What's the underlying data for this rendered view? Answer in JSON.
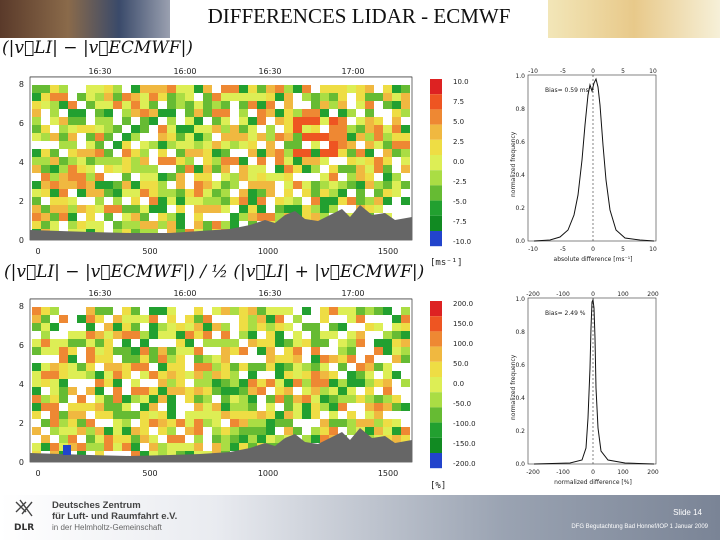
{
  "title": "DIFFERENCES LIDAR - ECMWF",
  "formula_abs": "(|v⃗LI| − |v⃗ECMWF|)",
  "formula_rel": "(|v⃗LI| − |v⃗ECMWF|) / ½ (|v⃗LI| + |v⃗ECMWF|)",
  "unit_abs": "[ms⁻¹]",
  "unit_rel": "[%]",
  "top_time_ticks": [
    "16:30",
    "16:00",
    "16:30",
    "17:00"
  ],
  "x_ticks": [
    "0",
    "500",
    "1000",
    "1500"
  ],
  "y_ticks": [
    "0",
    "2",
    "4",
    "6",
    "8"
  ],
  "colorbar_abs": [
    "10.0",
    "7.5",
    "5.0",
    "2.5",
    "0.0",
    "-2.5",
    "-5.0",
    "-7.5",
    "-10.0"
  ],
  "colorbar_rel": [
    "200.0",
    "150.0",
    "100.0",
    "50.0",
    "0.0",
    "-50.0",
    "-100.0",
    "-150.0",
    "-200.0"
  ],
  "colors": {
    "scale": [
      "#dd2222",
      "#ee5522",
      "#ee8833",
      "#f0b840",
      "#eedd44",
      "#ddee55",
      "#aadd44",
      "#66bb33",
      "#22a030",
      "#118a22",
      "#2244cc"
    ],
    "terrain": "#666666"
  },
  "hist_abs": {
    "x_ticks": [
      "-10",
      "-5",
      "0",
      "5",
      "10"
    ],
    "y_ticks": [
      "0.0",
      "0.2",
      "0.4",
      "0.6",
      "0.8",
      "1.0"
    ],
    "bias": "Bias= 0.59 ms⁻¹",
    "ylabel": "normalized frequency",
    "xlabel": "absolute difference [ms⁻¹]"
  },
  "hist_rel": {
    "x_ticks": [
      "-200",
      "-100",
      "0",
      "100",
      "200"
    ],
    "y_ticks": [
      "0.0",
      "0.2",
      "0.4",
      "0.6",
      "0.8",
      "1.0"
    ],
    "bias": "Bias= 2.49 %",
    "ylabel": "normalized frequency",
    "xlabel": "normalized difference [%]"
  },
  "footer": {
    "org_line1": "Deutsches Zentrum",
    "org_line2": "für Luft- und Raumfahrt e.V.",
    "org_line3": "in der Helmholtz-Gemeinschaft",
    "logo_text": "DLR",
    "slide": "Slide 14",
    "citation": "DFG Begutachtung Bad Honnef/IOP 1 Januar 2009"
  }
}
